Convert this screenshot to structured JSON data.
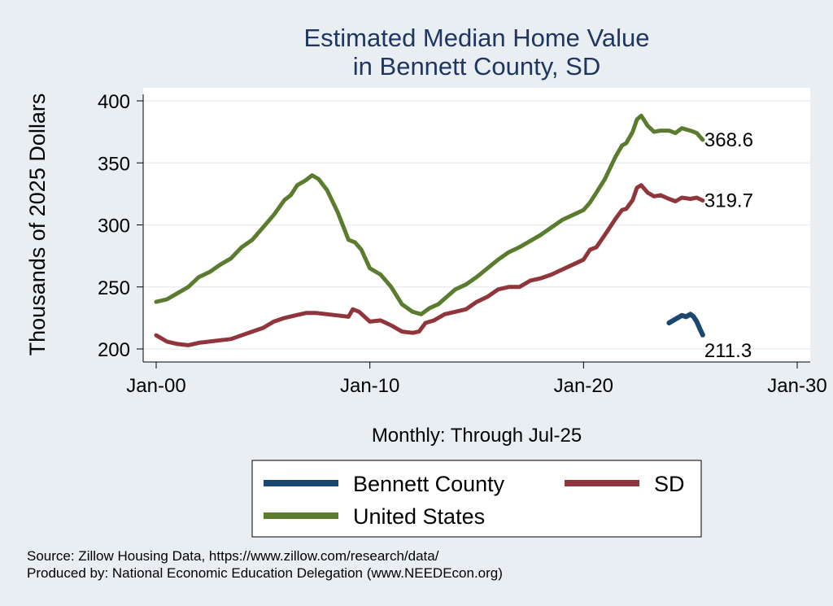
{
  "chart_data": {
    "type": "line",
    "title": [
      "Estimated Median Home Value",
      "in Bennett County, SD"
    ],
    "ylabel": "Thousands of 2025 Dollars",
    "xlabel": "Monthly: Through Jul-25",
    "ylim": [
      195,
      410
    ],
    "xlim": [
      2000.0,
      2030.0
    ],
    "yticks": [
      200,
      250,
      300,
      350,
      400
    ],
    "xticks": [
      {
        "label": "Jan-00",
        "value": 2000.0
      },
      {
        "label": "Jan-10",
        "value": 2010.0
      },
      {
        "label": "Jan-20",
        "value": 2020.0
      },
      {
        "label": "Jan-30",
        "value": 2030.0
      }
    ],
    "grid": true,
    "legend_position": "bottom",
    "series": [
      {
        "name": "Bennett County",
        "color": "#1a476f",
        "end_label": "211.3",
        "points": [
          [
            2024.0,
            221
          ],
          [
            2024.2,
            223
          ],
          [
            2024.4,
            225
          ],
          [
            2024.6,
            227
          ],
          [
            2024.8,
            226
          ],
          [
            2025.0,
            228
          ],
          [
            2025.15,
            226
          ],
          [
            2025.3,
            222
          ],
          [
            2025.45,
            216
          ],
          [
            2025.58,
            211.3
          ]
        ]
      },
      {
        "name": "SD",
        "color": "#90353b",
        "end_label": "319.7",
        "points": [
          [
            2000.0,
            211
          ],
          [
            2000.5,
            206
          ],
          [
            2001.0,
            204
          ],
          [
            2001.5,
            203
          ],
          [
            2002.0,
            205
          ],
          [
            2002.5,
            206
          ],
          [
            2003.0,
            207
          ],
          [
            2003.5,
            208
          ],
          [
            2004.0,
            211
          ],
          [
            2004.5,
            214
          ],
          [
            2005.0,
            217
          ],
          [
            2005.5,
            222
          ],
          [
            2006.0,
            225
          ],
          [
            2006.5,
            227
          ],
          [
            2007.0,
            229
          ],
          [
            2007.5,
            229
          ],
          [
            2008.0,
            228
          ],
          [
            2008.5,
            227
          ],
          [
            2009.0,
            226
          ],
          [
            2009.2,
            232
          ],
          [
            2009.5,
            230
          ],
          [
            2010.0,
            222
          ],
          [
            2010.5,
            223
          ],
          [
            2011.0,
            219
          ],
          [
            2011.5,
            214
          ],
          [
            2012.0,
            213
          ],
          [
            2012.3,
            214
          ],
          [
            2012.6,
            221
          ],
          [
            2013.0,
            223
          ],
          [
            2013.5,
            228
          ],
          [
            2014.0,
            230
          ],
          [
            2014.5,
            232
          ],
          [
            2015.0,
            238
          ],
          [
            2015.5,
            242
          ],
          [
            2016.0,
            248
          ],
          [
            2016.5,
            250
          ],
          [
            2017.0,
            250
          ],
          [
            2017.5,
            255
          ],
          [
            2018.0,
            257
          ],
          [
            2018.5,
            260
          ],
          [
            2019.0,
            264
          ],
          [
            2019.5,
            268
          ],
          [
            2020.0,
            272
          ],
          [
            2020.3,
            280
          ],
          [
            2020.6,
            282
          ],
          [
            2021.0,
            292
          ],
          [
            2021.5,
            305
          ],
          [
            2021.8,
            312
          ],
          [
            2022.0,
            313
          ],
          [
            2022.3,
            320
          ],
          [
            2022.5,
            330
          ],
          [
            2022.7,
            332
          ],
          [
            2023.0,
            326
          ],
          [
            2023.3,
            323
          ],
          [
            2023.6,
            324
          ],
          [
            2024.0,
            321
          ],
          [
            2024.3,
            319
          ],
          [
            2024.6,
            322
          ],
          [
            2025.0,
            321
          ],
          [
            2025.3,
            322
          ],
          [
            2025.58,
            319.7
          ]
        ]
      },
      {
        "name": "United States",
        "color": "#5b7b2f",
        "end_label": "368.6",
        "points": [
          [
            2000.0,
            238
          ],
          [
            2000.5,
            240
          ],
          [
            2001.0,
            245
          ],
          [
            2001.5,
            250
          ],
          [
            2002.0,
            258
          ],
          [
            2002.5,
            262
          ],
          [
            2003.0,
            268
          ],
          [
            2003.5,
            273
          ],
          [
            2004.0,
            282
          ],
          [
            2004.5,
            288
          ],
          [
            2005.0,
            298
          ],
          [
            2005.5,
            308
          ],
          [
            2006.0,
            320
          ],
          [
            2006.3,
            324
          ],
          [
            2006.6,
            332
          ],
          [
            2007.0,
            336
          ],
          [
            2007.3,
            340
          ],
          [
            2007.6,
            337
          ],
          [
            2008.0,
            328
          ],
          [
            2008.5,
            310
          ],
          [
            2009.0,
            288
          ],
          [
            2009.3,
            286
          ],
          [
            2009.6,
            280
          ],
          [
            2010.0,
            265
          ],
          [
            2010.5,
            260
          ],
          [
            2011.0,
            250
          ],
          [
            2011.5,
            236
          ],
          [
            2012.0,
            230
          ],
          [
            2012.4,
            228
          ],
          [
            2012.8,
            233
          ],
          [
            2013.2,
            236
          ],
          [
            2013.6,
            242
          ],
          [
            2014.0,
            248
          ],
          [
            2014.5,
            252
          ],
          [
            2015.0,
            258
          ],
          [
            2015.5,
            265
          ],
          [
            2016.0,
            272
          ],
          [
            2016.5,
            278
          ],
          [
            2017.0,
            282
          ],
          [
            2017.5,
            287
          ],
          [
            2018.0,
            292
          ],
          [
            2018.5,
            298
          ],
          [
            2019.0,
            304
          ],
          [
            2019.5,
            308
          ],
          [
            2020.0,
            312
          ],
          [
            2020.3,
            318
          ],
          [
            2020.6,
            326
          ],
          [
            2021.0,
            337
          ],
          [
            2021.5,
            355
          ],
          [
            2021.8,
            364
          ],
          [
            2022.0,
            366
          ],
          [
            2022.3,
            375
          ],
          [
            2022.5,
            385
          ],
          [
            2022.7,
            388
          ],
          [
            2023.0,
            380
          ],
          [
            2023.3,
            375
          ],
          [
            2023.6,
            376
          ],
          [
            2024.0,
            376
          ],
          [
            2024.3,
            374
          ],
          [
            2024.6,
            378
          ],
          [
            2025.0,
            376
          ],
          [
            2025.3,
            374
          ],
          [
            2025.58,
            368.6
          ]
        ]
      }
    ]
  },
  "footer": {
    "source": "Source: Zillow Housing Data, https://www.zillow.com/research/data/",
    "produced_by": "Produced by: National Economic Education Delegation (www.NEEDEcon.org)"
  }
}
